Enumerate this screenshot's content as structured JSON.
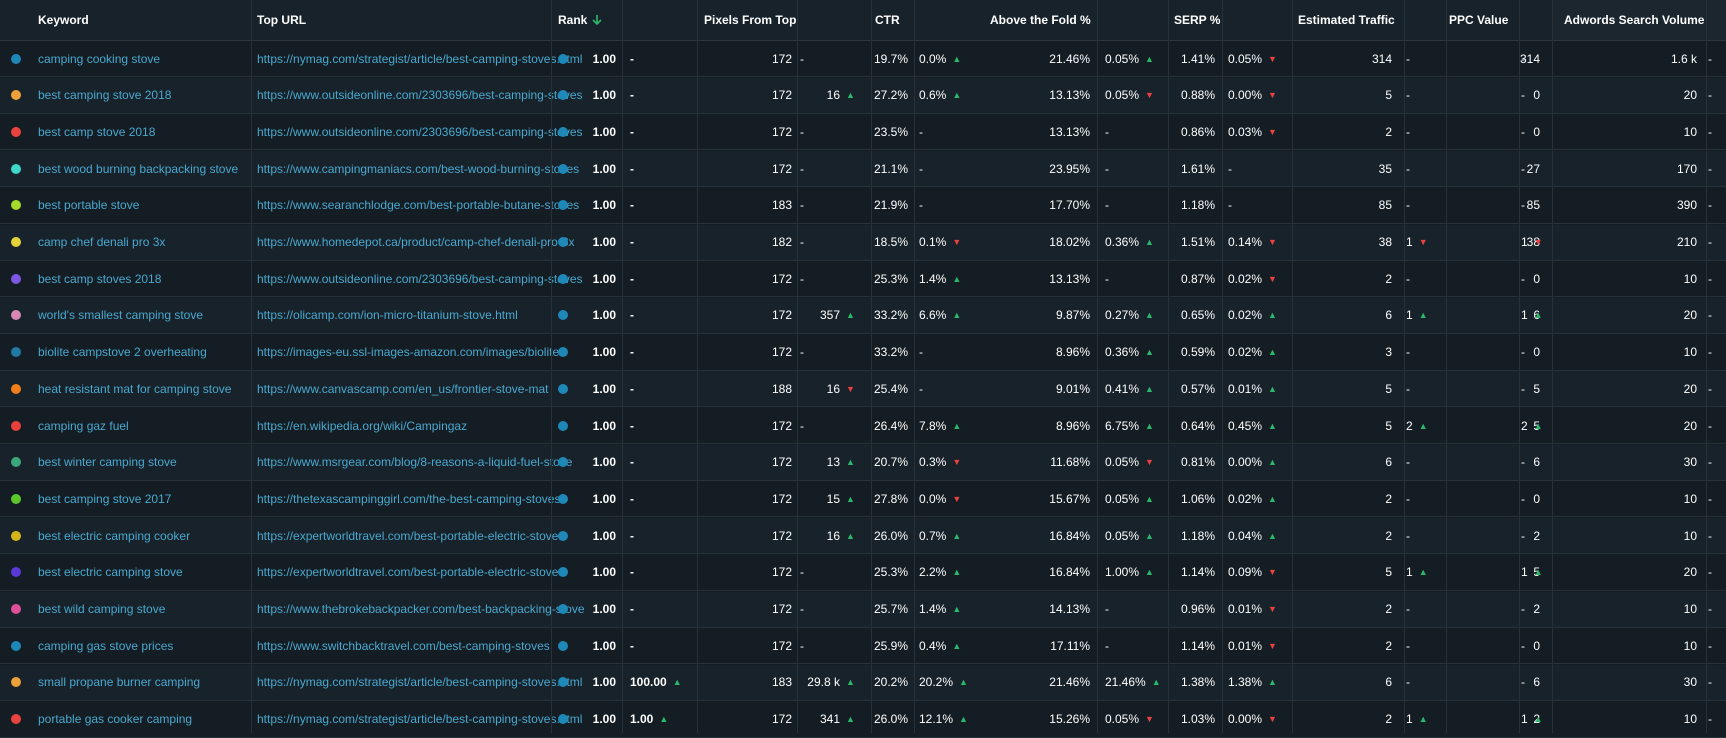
{
  "columns": {
    "keyword": "Keyword",
    "top_url": "Top URL",
    "rank": "Rank",
    "rank_sort_icon": "arrow-down",
    "pixels_from_top": "Pixels From Top",
    "ctr": "CTR",
    "above_fold": "Above the Fold %",
    "serp": "SERP %",
    "est_traffic": "Estimated Traffic",
    "ppc": "PPC Value",
    "adwords": "Adwords Search Volume"
  },
  "colors": {
    "up": "#2ab86a",
    "down": "#e84142",
    "rank_dot": "#1e88b8"
  },
  "rows": [
    {
      "color": "#1e88b8",
      "keyword": "camping cooking stove",
      "url": "https://nymag.com/strategist/article/best-camping-stoves.html",
      "rank": "1.00",
      "rank_d": "-",
      "rank_dir": "",
      "px": "172",
      "px_d": "-",
      "px_dir": "",
      "ctr": "19.7%",
      "ctr_d": "0.0%",
      "ctr_dir": "up",
      "atf": "21.46%",
      "atf_d": "0.05%",
      "atf_dir": "up",
      "serp": "1.41%",
      "serp_d": "0.05%",
      "serp_dir": "down",
      "traffic": "314",
      "traffic_d": "-",
      "traffic_dir": "",
      "ppc": "314",
      "ppc_d": "-",
      "ppc_dir": "",
      "adw": "1.6 k",
      "adw_d": "-"
    },
    {
      "color": "#f0a03a",
      "keyword": "best camping stove 2018",
      "url": "https://www.outsideonline.com/2303696/best-camping-stoves",
      "rank": "1.00",
      "rank_d": "-",
      "rank_dir": "",
      "px": "172",
      "px_d": "16",
      "px_dir": "up",
      "ctr": "27.2%",
      "ctr_d": "0.6%",
      "ctr_dir": "up",
      "atf": "13.13%",
      "atf_d": "0.05%",
      "atf_dir": "down",
      "serp": "0.88%",
      "serp_d": "0.00%",
      "serp_dir": "down",
      "traffic": "5",
      "traffic_d": "-",
      "traffic_dir": "",
      "ppc": "0",
      "ppc_d": "-",
      "ppc_dir": "",
      "adw": "20",
      "adw_d": "-"
    },
    {
      "color": "#e8433e",
      "keyword": "best camp stove 2018",
      "url": "https://www.outsideonline.com/2303696/best-camping-stoves",
      "rank": "1.00",
      "rank_d": "-",
      "rank_dir": "",
      "px": "172",
      "px_d": "-",
      "px_dir": "",
      "ctr": "23.5%",
      "ctr_d": "-",
      "ctr_dir": "",
      "atf": "13.13%",
      "atf_d": "-",
      "atf_dir": "",
      "serp": "0.86%",
      "serp_d": "0.03%",
      "serp_dir": "down",
      "traffic": "2",
      "traffic_d": "-",
      "traffic_dir": "",
      "ppc": "0",
      "ppc_d": "-",
      "ppc_dir": "",
      "adw": "10",
      "adw_d": "-"
    },
    {
      "color": "#3ed6c8",
      "keyword": "best wood burning backpacking stove",
      "url": "https://www.campingmaniacs.com/best-wood-burning-stoves",
      "rank": "1.00",
      "rank_d": "-",
      "rank_dir": "",
      "px": "172",
      "px_d": "-",
      "px_dir": "",
      "ctr": "21.1%",
      "ctr_d": "-",
      "ctr_dir": "",
      "atf": "23.95%",
      "atf_d": "-",
      "atf_dir": "",
      "serp": "1.61%",
      "serp_d": "-",
      "serp_dir": "",
      "traffic": "35",
      "traffic_d": "-",
      "traffic_dir": "",
      "ppc": "27",
      "ppc_d": "-",
      "ppc_dir": "",
      "adw": "170",
      "adw_d": "-"
    },
    {
      "color": "#a6d92c",
      "keyword": "best portable stove",
      "url": "https://www.searanchlodge.com/best-portable-butane-stoves",
      "rank": "1.00",
      "rank_d": "-",
      "rank_dir": "",
      "px": "183",
      "px_d": "-",
      "px_dir": "",
      "ctr": "21.9%",
      "ctr_d": "-",
      "ctr_dir": "",
      "atf": "17.70%",
      "atf_d": "-",
      "atf_dir": "",
      "serp": "1.18%",
      "serp_d": "-",
      "serp_dir": "",
      "traffic": "85",
      "traffic_d": "-",
      "traffic_dir": "",
      "ppc": "85",
      "ppc_d": "-",
      "ppc_dir": "",
      "adw": "390",
      "adw_d": "-"
    },
    {
      "color": "#e3d23c",
      "keyword": "camp chef denali pro 3x",
      "url": "https://www.homedepot.ca/product/camp-chef-denali-pro-3x",
      "rank": "1.00",
      "rank_d": "-",
      "rank_dir": "",
      "px": "182",
      "px_d": "-",
      "px_dir": "",
      "ctr": "18.5%",
      "ctr_d": "0.1%",
      "ctr_dir": "down",
      "atf": "18.02%",
      "atf_d": "0.36%",
      "atf_dir": "up",
      "serp": "1.51%",
      "serp_d": "0.14%",
      "serp_dir": "down",
      "traffic": "38",
      "traffic_d": "1",
      "traffic_dir": "down",
      "ppc": "38",
      "ppc_d": "1",
      "ppc_dir": "down",
      "adw": "210",
      "adw_d": "-"
    },
    {
      "color": "#7e57e6",
      "keyword": "best camp stoves 2018",
      "url": "https://www.outsideonline.com/2303696/best-camping-stoves",
      "rank": "1.00",
      "rank_d": "-",
      "rank_dir": "",
      "px": "172",
      "px_d": "-",
      "px_dir": "",
      "ctr": "25.3%",
      "ctr_d": "1.4%",
      "ctr_dir": "up",
      "atf": "13.13%",
      "atf_d": "-",
      "atf_dir": "",
      "serp": "0.87%",
      "serp_d": "0.02%",
      "serp_dir": "down",
      "traffic": "2",
      "traffic_d": "-",
      "traffic_dir": "",
      "ppc": "0",
      "ppc_d": "-",
      "ppc_dir": "",
      "adw": "10",
      "adw_d": "-"
    },
    {
      "color": "#d886b4",
      "keyword": "world's smallest camping stove",
      "url": "https://olicamp.com/ion-micro-titanium-stove.html",
      "rank": "1.00",
      "rank_d": "-",
      "rank_dir": "",
      "px": "172",
      "px_d": "357",
      "px_dir": "up",
      "ctr": "33.2%",
      "ctr_d": "6.6%",
      "ctr_dir": "up",
      "atf": "9.87%",
      "atf_d": "0.27%",
      "atf_dir": "up",
      "serp": "0.65%",
      "serp_d": "0.02%",
      "serp_dir": "up",
      "traffic": "6",
      "traffic_d": "1",
      "traffic_dir": "up",
      "ppc": "6",
      "ppc_d": "1",
      "ppc_dir": "up",
      "adw": "20",
      "adw_d": "-"
    },
    {
      "color": "#1e7aa0",
      "keyword": "biolite campstove 2 overheating",
      "url": "https://images-eu.ssl-images-amazon.com/images/biolite",
      "rank": "1.00",
      "rank_d": "-",
      "rank_dir": "",
      "px": "172",
      "px_d": "-",
      "px_dir": "",
      "ctr": "33.2%",
      "ctr_d": "-",
      "ctr_dir": "",
      "atf": "8.96%",
      "atf_d": "0.36%",
      "atf_dir": "up",
      "serp": "0.59%",
      "serp_d": "0.02%",
      "serp_dir": "up",
      "traffic": "3",
      "traffic_d": "-",
      "traffic_dir": "",
      "ppc": "0",
      "ppc_d": "-",
      "ppc_dir": "",
      "adw": "10",
      "adw_d": "-"
    },
    {
      "color": "#f07e1a",
      "keyword": "heat resistant mat for camping stove",
      "url": "https://www.canvascamp.com/en_us/frontier-stove-mat",
      "rank": "1.00",
      "rank_d": "-",
      "rank_dir": "",
      "px": "188",
      "px_d": "16",
      "px_dir": "down",
      "ctr": "25.4%",
      "ctr_d": "-",
      "ctr_dir": "",
      "atf": "9.01%",
      "atf_d": "0.41%",
      "atf_dir": "up",
      "serp": "0.57%",
      "serp_d": "0.01%",
      "serp_dir": "up",
      "traffic": "5",
      "traffic_d": "-",
      "traffic_dir": "",
      "ppc": "5",
      "ppc_d": "-",
      "ppc_dir": "",
      "adw": "20",
      "adw_d": "-"
    },
    {
      "color": "#e8403c",
      "keyword": "camping gaz fuel",
      "url": "https://en.wikipedia.org/wiki/Campingaz",
      "rank": "1.00",
      "rank_d": "-",
      "rank_dir": "",
      "px": "172",
      "px_d": "-",
      "px_dir": "",
      "ctr": "26.4%",
      "ctr_d": "7.8%",
      "ctr_dir": "up",
      "atf": "8.96%",
      "atf_d": "6.75%",
      "atf_dir": "up",
      "serp": "0.64%",
      "serp_d": "0.45%",
      "serp_dir": "up",
      "traffic": "5",
      "traffic_d": "2",
      "traffic_dir": "up",
      "ppc": "5",
      "ppc_d": "2",
      "ppc_dir": "up",
      "adw": "20",
      "adw_d": "-"
    },
    {
      "color": "#3aa87a",
      "keyword": "best winter camping stove",
      "url": "https://www.msrgear.com/blog/8-reasons-a-liquid-fuel-stove",
      "rank": "1.00",
      "rank_d": "-",
      "rank_dir": "",
      "px": "172",
      "px_d": "13",
      "px_dir": "up",
      "ctr": "20.7%",
      "ctr_d": "0.3%",
      "ctr_dir": "down",
      "atf": "11.68%",
      "atf_d": "0.05%",
      "atf_dir": "down",
      "serp": "0.81%",
      "serp_d": "0.00%",
      "serp_dir": "up",
      "traffic": "6",
      "traffic_d": "-",
      "traffic_dir": "",
      "ppc": "6",
      "ppc_d": "-",
      "ppc_dir": "",
      "adw": "30",
      "adw_d": "-"
    },
    {
      "color": "#5cc72a",
      "keyword": "best camping stove 2017",
      "url": "https://thetexascampinggirl.com/the-best-camping-stoves",
      "rank": "1.00",
      "rank_d": "-",
      "rank_dir": "",
      "px": "172",
      "px_d": "15",
      "px_dir": "up",
      "ctr": "27.8%",
      "ctr_d": "0.0%",
      "ctr_dir": "down",
      "atf": "15.67%",
      "atf_d": "0.05%",
      "atf_dir": "up",
      "serp": "1.06%",
      "serp_d": "0.02%",
      "serp_dir": "up",
      "traffic": "2",
      "traffic_d": "-",
      "traffic_dir": "",
      "ppc": "0",
      "ppc_d": "-",
      "ppc_dir": "",
      "adw": "10",
      "adw_d": "-"
    },
    {
      "color": "#d6b21a",
      "keyword": "best electric camping cooker",
      "url": "https://expertworldtravel.com/best-portable-electric-stoves",
      "rank": "1.00",
      "rank_d": "-",
      "rank_dir": "",
      "px": "172",
      "px_d": "16",
      "px_dir": "up",
      "ctr": "26.0%",
      "ctr_d": "0.7%",
      "ctr_dir": "up",
      "atf": "16.84%",
      "atf_d": "0.05%",
      "atf_dir": "up",
      "serp": "1.18%",
      "serp_d": "0.04%",
      "serp_dir": "up",
      "traffic": "2",
      "traffic_d": "-",
      "traffic_dir": "",
      "ppc": "2",
      "ppc_d": "-",
      "ppc_dir": "",
      "adw": "10",
      "adw_d": "-"
    },
    {
      "color": "#5a3ad6",
      "keyword": "best electric camping stove",
      "url": "https://expertworldtravel.com/best-portable-electric-stoves",
      "rank": "1.00",
      "rank_d": "-",
      "rank_dir": "",
      "px": "172",
      "px_d": "-",
      "px_dir": "",
      "ctr": "25.3%",
      "ctr_d": "2.2%",
      "ctr_dir": "up",
      "atf": "16.84%",
      "atf_d": "1.00%",
      "atf_dir": "up",
      "serp": "1.14%",
      "serp_d": "0.09%",
      "serp_dir": "down",
      "traffic": "5",
      "traffic_d": "1",
      "traffic_dir": "up",
      "ppc": "5",
      "ppc_d": "1",
      "ppc_dir": "up",
      "adw": "20",
      "adw_d": "-"
    },
    {
      "color": "#e0509a",
      "keyword": "best wild camping stove",
      "url": "https://www.thebrokebackpacker.com/best-backpacking-stove",
      "rank": "1.00",
      "rank_d": "-",
      "rank_dir": "",
      "px": "172",
      "px_d": "-",
      "px_dir": "",
      "ctr": "25.7%",
      "ctr_d": "1.4%",
      "ctr_dir": "up",
      "atf": "14.13%",
      "atf_d": "-",
      "atf_dir": "",
      "serp": "0.96%",
      "serp_d": "0.01%",
      "serp_dir": "down",
      "traffic": "2",
      "traffic_d": "-",
      "traffic_dir": "",
      "ppc": "2",
      "ppc_d": "-",
      "ppc_dir": "",
      "adw": "10",
      "adw_d": "-"
    },
    {
      "color": "#1e88b8",
      "keyword": "camping gas stove prices",
      "url": "https://www.switchbacktravel.com/best-camping-stoves",
      "rank": "1.00",
      "rank_d": "-",
      "rank_dir": "",
      "px": "172",
      "px_d": "-",
      "px_dir": "",
      "ctr": "25.9%",
      "ctr_d": "0.4%",
      "ctr_dir": "up",
      "atf": "17.11%",
      "atf_d": "-",
      "atf_dir": "",
      "serp": "1.14%",
      "serp_d": "0.01%",
      "serp_dir": "down",
      "traffic": "2",
      "traffic_d": "-",
      "traffic_dir": "",
      "ppc": "0",
      "ppc_d": "-",
      "ppc_dir": "",
      "adw": "10",
      "adw_d": "-"
    },
    {
      "color": "#f0a03a",
      "keyword": "small propane burner camping",
      "url": "https://nymag.com/strategist/article/best-camping-stoves.html",
      "rank": "1.00",
      "rank_d": "100.00",
      "rank_dir": "up",
      "px": "183",
      "px_d": "29.8 k",
      "px_dir": "up",
      "ctr": "20.2%",
      "ctr_d": "20.2%",
      "ctr_dir": "up",
      "atf": "21.46%",
      "atf_d": "21.46%",
      "atf_dir": "up",
      "serp": "1.38%",
      "serp_d": "1.38%",
      "serp_dir": "up",
      "traffic": "6",
      "traffic_d": "-",
      "traffic_dir": "",
      "ppc": "6",
      "ppc_d": "-",
      "ppc_dir": "",
      "adw": "30",
      "adw_d": "-"
    },
    {
      "color": "#e8433e",
      "keyword": "portable gas cooker camping",
      "url": "https://nymag.com/strategist/article/best-camping-stoves.html",
      "rank": "1.00",
      "rank_d": "1.00",
      "rank_dir": "up",
      "px": "172",
      "px_d": "341",
      "px_dir": "up",
      "ctr": "26.0%",
      "ctr_d": "12.1%",
      "ctr_dir": "up",
      "atf": "15.26%",
      "atf_d": "0.05%",
      "atf_dir": "down",
      "serp": "1.03%",
      "serp_d": "0.00%",
      "serp_dir": "down",
      "traffic": "2",
      "traffic_d": "1",
      "traffic_dir": "up",
      "ppc": "2",
      "ppc_d": "1",
      "ppc_dir": "up",
      "adw": "10",
      "adw_d": "-"
    }
  ]
}
